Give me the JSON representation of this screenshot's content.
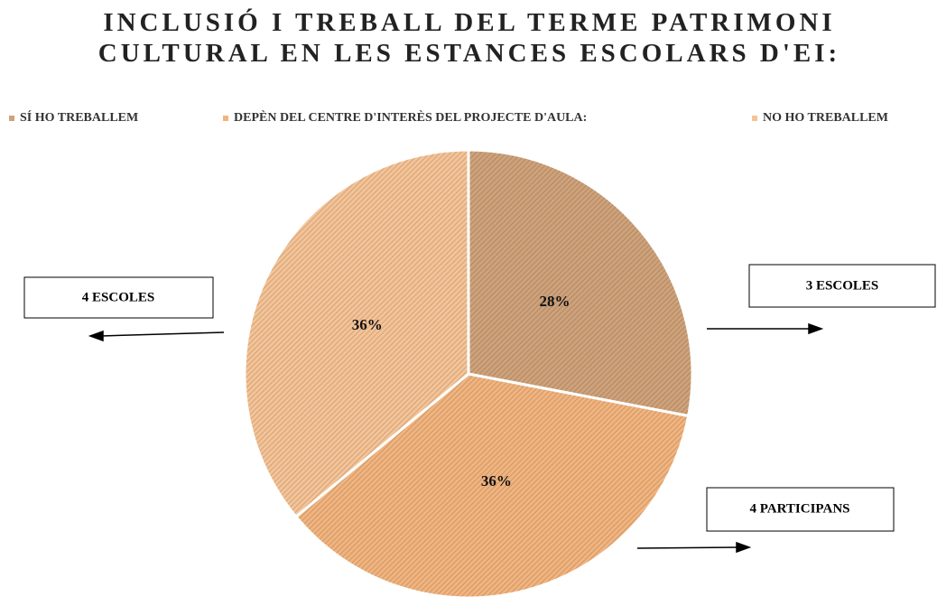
{
  "chart_data": {
    "type": "pie",
    "title": "INCLUSIÓ I TREBALL DEL TERME PATRIMONI CULTURAL EN LES ESTANCES ESCOLARS D'EI:",
    "categories": [
      "SÍ HO TREBALLEM",
      "DEPÈN DEL CENTRE D'INTERÈS DEL PROJECTE D'AULA:",
      "NO HO TREBALLEM"
    ],
    "values": [
      28,
      36,
      36
    ],
    "value_labels": [
      "28%",
      "36%",
      "36%"
    ],
    "colors": [
      "#cfa27a",
      "#f2b47e",
      "#f5c396"
    ],
    "legend": "top",
    "annotations": [
      "4 ESCOLES",
      "3 ESCOLES",
      "4 PARTICIPANS"
    ]
  }
}
